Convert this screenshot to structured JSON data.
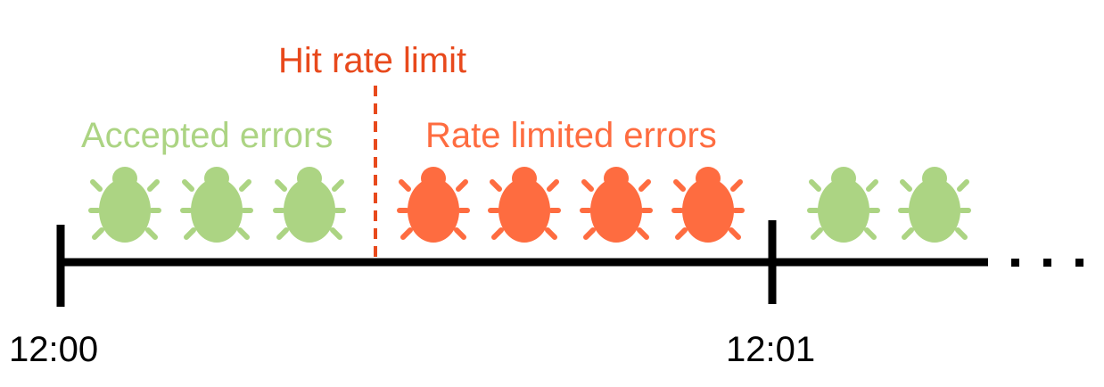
{
  "labels": {
    "hit_rate_limit": "Hit rate limit",
    "accepted_errors": "Accepted errors",
    "rate_limited_errors": "Rate limited errors"
  },
  "times": {
    "start": "12:00",
    "next": "12:01"
  },
  "colors": {
    "accepted": "#acd483",
    "rate_limited": "#fe6c40",
    "limit_line": "#e8491c",
    "timeline": "#000000"
  },
  "bugs": [
    {
      "type": "accepted"
    },
    {
      "type": "accepted"
    },
    {
      "type": "accepted"
    },
    {
      "type": "rate_limited"
    },
    {
      "type": "rate_limited"
    },
    {
      "type": "rate_limited"
    },
    {
      "type": "rate_limited"
    },
    {
      "type": "accepted"
    },
    {
      "type": "accepted"
    }
  ],
  "continuation": "..."
}
